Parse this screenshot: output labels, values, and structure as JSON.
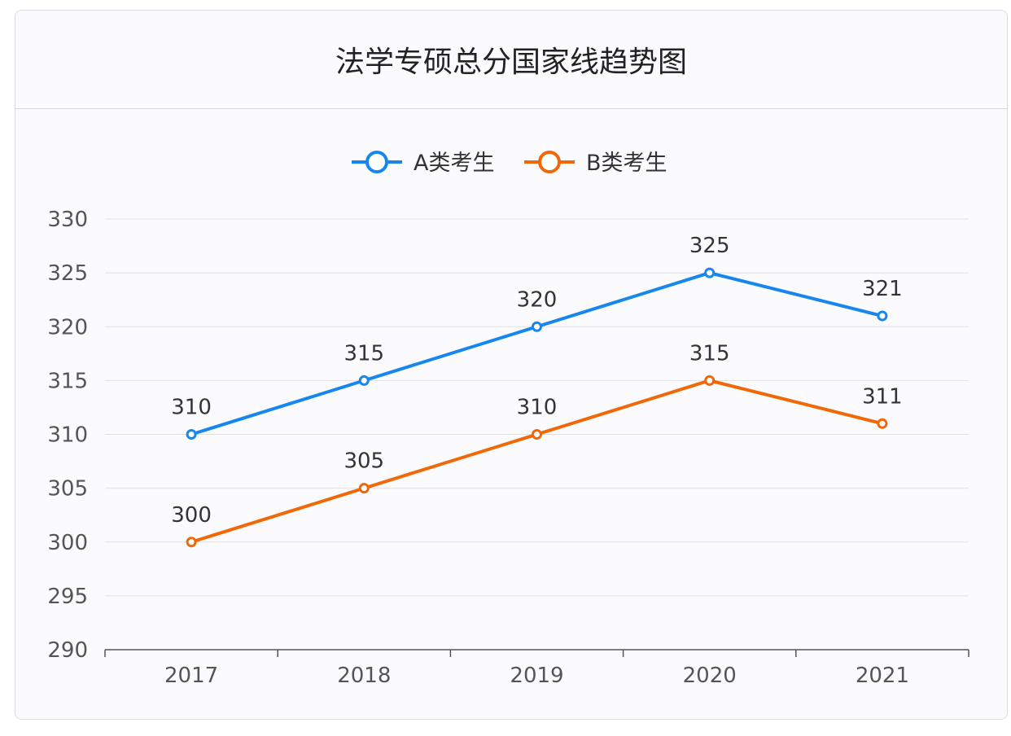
{
  "chart_data": {
    "type": "line",
    "title": "法学专硕总分国家线趋势图",
    "categories": [
      "2017",
      "2018",
      "2019",
      "2020",
      "2021"
    ],
    "series": [
      {
        "name": "A类考生",
        "color": "#1787ee",
        "values": [
          310,
          315,
          320,
          325,
          321
        ]
      },
      {
        "name": "B类考生",
        "color": "#f06808",
        "values": [
          300,
          305,
          310,
          315,
          311
        ]
      }
    ],
    "ylim": [
      290,
      330
    ],
    "yticks": [
      290,
      295,
      300,
      305,
      310,
      315,
      320,
      325,
      330
    ],
    "grid": true,
    "legend": "top-center",
    "data_labels": true
  }
}
